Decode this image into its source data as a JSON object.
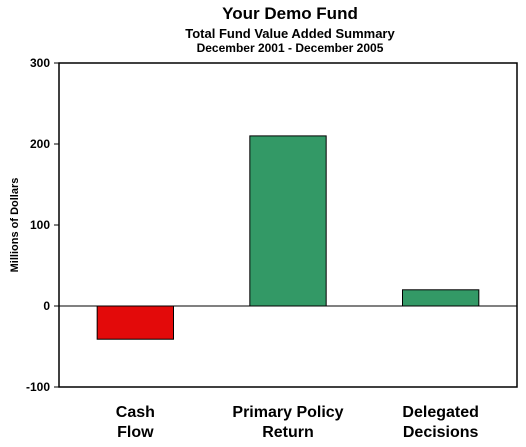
{
  "chart_data": {
    "type": "bar",
    "title": "Your Demo Fund",
    "subtitle": "Total Fund Value Added Summary",
    "period": "December 2001 - December 2005",
    "ylabel": "Millions of Dollars",
    "ylim": [
      -100,
      300
    ],
    "yticks": [
      -100,
      0,
      100,
      200,
      300
    ],
    "categories": [
      [
        "Cash",
        "Flow"
      ],
      [
        "Primary Policy",
        "Return"
      ],
      [
        "Delegated",
        "Decisions"
      ]
    ],
    "values": [
      -41,
      210,
      20
    ],
    "colors": [
      "#e30a0a",
      "#339966",
      "#339966"
    ],
    "grid": false,
    "legend": "none"
  }
}
